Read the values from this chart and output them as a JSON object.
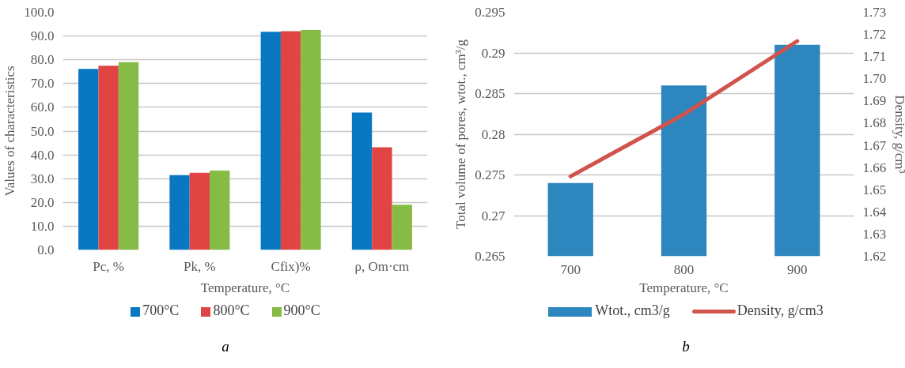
{
  "chart_data": [
    {
      "type": "bar",
      "xlabel": "Temperature, °C",
      "ylabel": "Values of characteristics",
      "categories": [
        "Pc, %",
        "Pk, %",
        "Cfix)%",
        "ρ, Om·cm"
      ],
      "series": [
        {
          "name": "700°C",
          "color": "#0a77c2",
          "values": [
            76.2,
            31.5,
            91.8,
            57.8
          ]
        },
        {
          "name": "800°C",
          "color": "#e04544",
          "values": [
            77.5,
            32.5,
            92.0,
            43.2
          ]
        },
        {
          "name": "900°C",
          "color": "#86bc46",
          "values": [
            79.0,
            33.4,
            92.5,
            19.0
          ]
        }
      ],
      "ylim": [
        0,
        100
      ],
      "yticks": [
        {
          "value": 0,
          "label": "0.0"
        },
        {
          "value": 10,
          "label": "10.0"
        },
        {
          "value": 20,
          "label": "20.0"
        },
        {
          "value": 30,
          "label": "30.0"
        },
        {
          "value": 40,
          "label": "40.0"
        },
        {
          "value": 50,
          "label": "50.0"
        },
        {
          "value": 60,
          "label": "60.0"
        },
        {
          "value": 70,
          "label": "70.0"
        },
        {
          "value": 80,
          "label": "80.0"
        },
        {
          "value": 90,
          "label": "90.0"
        },
        {
          "value": 100,
          "label": "100.0"
        }
      ],
      "grid": "y",
      "legend": "bottom",
      "annotations": [
        "a"
      ]
    },
    {
      "type": "bar",
      "xlabel": "Temperature, °C",
      "ylabel": "Total volume of pores, wtot., cm³/g",
      "y2label": "Density, g/cm³",
      "categories": [
        "700",
        "800",
        "900"
      ],
      "series": [
        {
          "name": "Wtot., cm3/g",
          "color": "#2e86be",
          "values": [
            0.274,
            0.286,
            0.291
          ]
        },
        {
          "name": "Density, g/cm3",
          "type": "line",
          "axis": "y2",
          "color": "#d0544b",
          "values": [
            1.656,
            1.684,
            1.717
          ]
        }
      ],
      "ylim": [
        0.265,
        0.295
      ],
      "yticks": [
        0.265,
        0.27,
        0.275,
        0.28,
        0.285,
        0.29,
        0.295
      ],
      "y2lim": [
        1.62,
        1.73
      ],
      "y2ticks": [
        {
          "value": 1.62,
          "label": "1.62"
        },
        {
          "value": 1.63,
          "label": "1.63"
        },
        {
          "value": 1.64,
          "label": "1.64"
        },
        {
          "value": 1.65,
          "label": "1.65"
        },
        {
          "value": 1.66,
          "label": "1.66"
        },
        {
          "value": 1.67,
          "label": "1.67"
        },
        {
          "value": 1.68,
          "label": "1.68"
        },
        {
          "value": 1.69,
          "label": "1.69"
        },
        {
          "value": 1.7,
          "label": "1.70"
        },
        {
          "value": 1.71,
          "label": "1.71"
        },
        {
          "value": 1.72,
          "label": "1.72"
        },
        {
          "value": 1.73,
          "label": "1.73"
        }
      ],
      "grid": "y",
      "legend": "bottom",
      "marker": "none",
      "line_style": "solid",
      "annotations": [
        "b"
      ]
    }
  ]
}
